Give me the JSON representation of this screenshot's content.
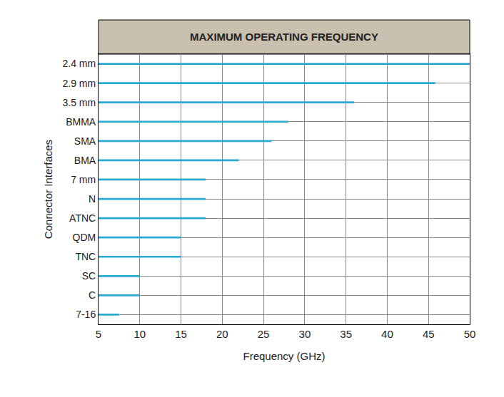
{
  "chart_data": {
    "type": "bar",
    "orientation": "horizontal",
    "title": "MAXIMUM OPERATING FREQUENCY",
    "x_label": "Frequency (GHz)",
    "y_label": "Connector Interfaces",
    "categories": [
      "2.4 mm",
      "2.9 mm",
      "3.5 mm",
      "BMMA",
      "SMA",
      "BMA",
      "7 mm",
      "N",
      "ATNC",
      "QDM",
      "TNC",
      "SC",
      "C",
      "7-16"
    ],
    "values": [
      50,
      45.8,
      36,
      28,
      26,
      22,
      18,
      18,
      18,
      15,
      15,
      10,
      10,
      7.5
    ],
    "color": "#29a9d2",
    "xlim": [
      5,
      50
    ],
    "xticks": [
      5,
      10,
      15,
      20,
      25,
      30,
      35,
      40,
      45,
      50
    ],
    "grid": true
  }
}
